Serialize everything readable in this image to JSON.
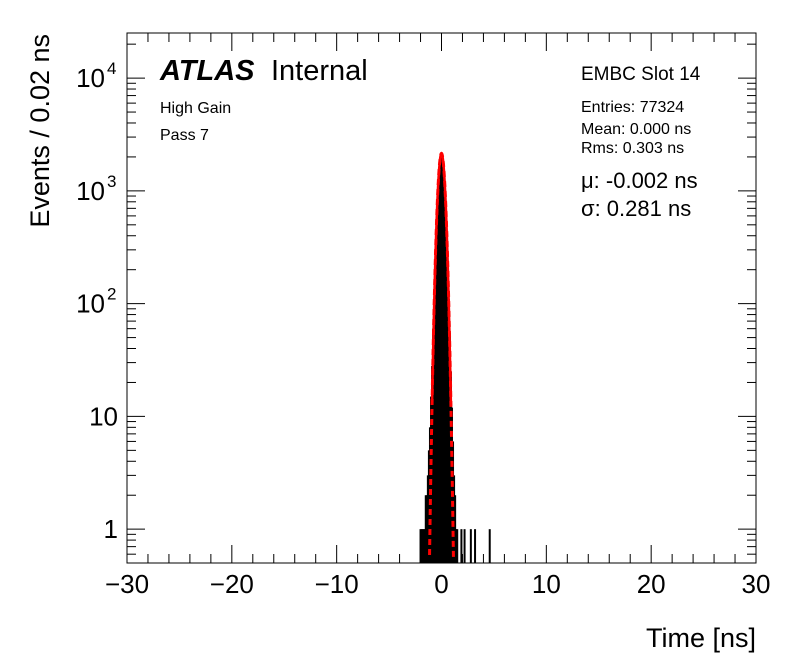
{
  "chart_data": {
    "type": "histogram",
    "title": "",
    "xlabel": "Time [ns]",
    "ylabel": "Events / 0.02 ns",
    "xlim": [
      -30,
      30
    ],
    "ylim_log10": [
      -0.3,
      4.4
    ],
    "yscale": "log",
    "x_ticks": [
      {
        "v": -30,
        "label": "−30"
      },
      {
        "v": -20,
        "label": "−20"
      },
      {
        "v": -10,
        "label": "−10"
      },
      {
        "v": 0,
        "label": "0"
      },
      {
        "v": 10,
        "label": "10"
      },
      {
        "v": 20,
        "label": "20"
      },
      {
        "v": 30,
        "label": "30"
      }
    ],
    "y_ticks": [
      {
        "v": 1,
        "base": "1",
        "exp": ""
      },
      {
        "v": 10,
        "base": "10",
        "exp": ""
      },
      {
        "v": 100,
        "base": "10",
        "exp": "2"
      },
      {
        "v": 1000,
        "base": "10",
        "exp": "3"
      },
      {
        "v": 10000,
        "base": "10",
        "exp": "4"
      }
    ],
    "histogram_bins": [
      {
        "x": -2.0,
        "y": 1
      },
      {
        "x": -1.9,
        "y": 1
      },
      {
        "x": -1.8,
        "y": 1
      },
      {
        "x": -1.7,
        "y": 1
      },
      {
        "x": -1.6,
        "y": 1
      },
      {
        "x": -1.5,
        "y": 2
      },
      {
        "x": -1.4,
        "y": 2
      },
      {
        "x": -1.3,
        "y": 3
      },
      {
        "x": -1.2,
        "y": 5
      },
      {
        "x": -1.1,
        "y": 8
      },
      {
        "x": -1.0,
        "y": 15
      },
      {
        "x": -0.9,
        "y": 28
      },
      {
        "x": -0.8,
        "y": 60
      },
      {
        "x": -0.7,
        "y": 110
      },
      {
        "x": -0.6,
        "y": 210
      },
      {
        "x": -0.5,
        "y": 380
      },
      {
        "x": -0.4,
        "y": 650
      },
      {
        "x": -0.3,
        "y": 1000
      },
      {
        "x": -0.2,
        "y": 1500
      },
      {
        "x": -0.1,
        "y": 1950
      },
      {
        "x": 0.0,
        "y": 2150
      },
      {
        "x": 0.1,
        "y": 1950
      },
      {
        "x": 0.2,
        "y": 1500
      },
      {
        "x": 0.3,
        "y": 1000
      },
      {
        "x": 0.4,
        "y": 650
      },
      {
        "x": 0.5,
        "y": 380
      },
      {
        "x": 0.6,
        "y": 210
      },
      {
        "x": 0.7,
        "y": 110
      },
      {
        "x": 0.8,
        "y": 55
      },
      {
        "x": 0.9,
        "y": 25
      },
      {
        "x": 1.0,
        "y": 12
      },
      {
        "x": 1.1,
        "y": 6
      },
      {
        "x": 1.2,
        "y": 3
      },
      {
        "x": 1.3,
        "y": 2
      },
      {
        "x": 1.4,
        "y": 1
      },
      {
        "x": 1.5,
        "y": 1
      },
      {
        "x": 1.9,
        "y": 1
      },
      {
        "x": 2.2,
        "y": 1
      },
      {
        "x": 2.8,
        "y": 1
      },
      {
        "x": 3.2,
        "y": 1
      },
      {
        "x": 4.6,
        "y": 1
      }
    ],
    "fit": {
      "type": "gaussian",
      "mean": -0.002,
      "sigma": 0.281,
      "peak": 2150,
      "color": "#ff0000"
    },
    "annotations": {
      "atlas": "ATLAS",
      "internal": "Internal",
      "gain": "High Gain",
      "pass": "Pass 7",
      "slot": "EMBC Slot 14",
      "entries": "Entries: 77324",
      "mean": "Mean: 0.000 ns",
      "rms": "Rms: 0.303 ns",
      "mu": "μ: -0.002 ns",
      "sigma": "σ: 0.281 ns"
    }
  }
}
